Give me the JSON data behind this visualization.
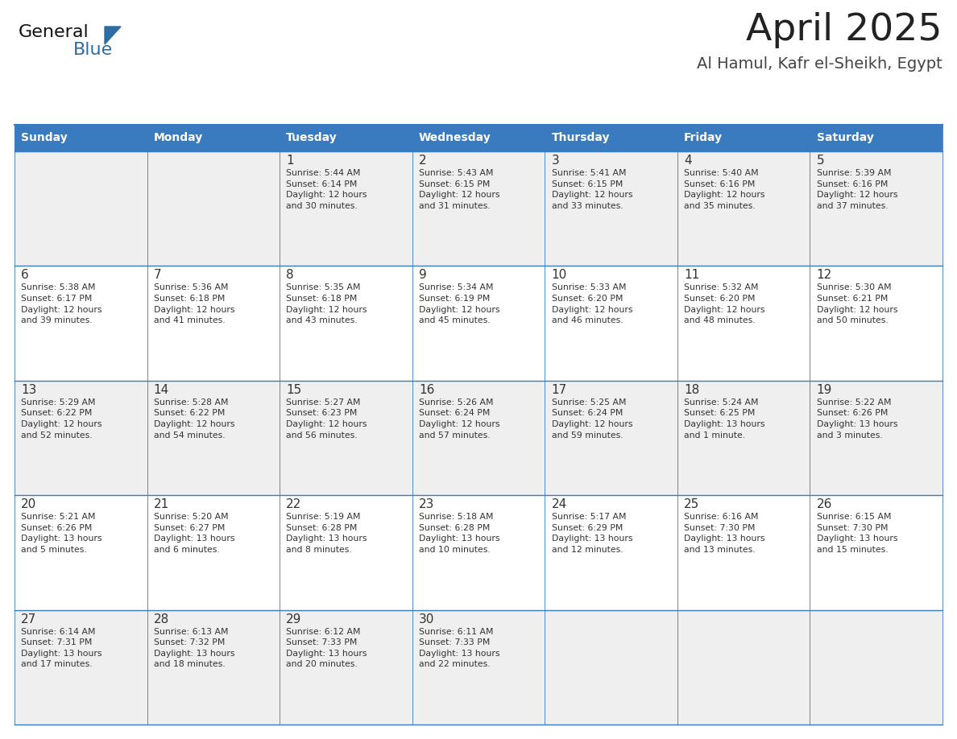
{
  "title": "April 2025",
  "subtitle": "Al Hamul, Kafr el-Sheikh, Egypt",
  "header_bg": "#3a7abf",
  "header_text": "#ffffff",
  "days_of_week": [
    "Sunday",
    "Monday",
    "Tuesday",
    "Wednesday",
    "Thursday",
    "Friday",
    "Saturday"
  ],
  "row_bg_even": "#efefef",
  "row_bg_odd": "#ffffff",
  "cell_text_color": "#333333",
  "grid_line_color": "#3a7abf",
  "calendar": [
    [
      {
        "day": "",
        "info": ""
      },
      {
        "day": "",
        "info": ""
      },
      {
        "day": "1",
        "info": "Sunrise: 5:44 AM\nSunset: 6:14 PM\nDaylight: 12 hours\nand 30 minutes."
      },
      {
        "day": "2",
        "info": "Sunrise: 5:43 AM\nSunset: 6:15 PM\nDaylight: 12 hours\nand 31 minutes."
      },
      {
        "day": "3",
        "info": "Sunrise: 5:41 AM\nSunset: 6:15 PM\nDaylight: 12 hours\nand 33 minutes."
      },
      {
        "day": "4",
        "info": "Sunrise: 5:40 AM\nSunset: 6:16 PM\nDaylight: 12 hours\nand 35 minutes."
      },
      {
        "day": "5",
        "info": "Sunrise: 5:39 AM\nSunset: 6:16 PM\nDaylight: 12 hours\nand 37 minutes."
      }
    ],
    [
      {
        "day": "6",
        "info": "Sunrise: 5:38 AM\nSunset: 6:17 PM\nDaylight: 12 hours\nand 39 minutes."
      },
      {
        "day": "7",
        "info": "Sunrise: 5:36 AM\nSunset: 6:18 PM\nDaylight: 12 hours\nand 41 minutes."
      },
      {
        "day": "8",
        "info": "Sunrise: 5:35 AM\nSunset: 6:18 PM\nDaylight: 12 hours\nand 43 minutes."
      },
      {
        "day": "9",
        "info": "Sunrise: 5:34 AM\nSunset: 6:19 PM\nDaylight: 12 hours\nand 45 minutes."
      },
      {
        "day": "10",
        "info": "Sunrise: 5:33 AM\nSunset: 6:20 PM\nDaylight: 12 hours\nand 46 minutes."
      },
      {
        "day": "11",
        "info": "Sunrise: 5:32 AM\nSunset: 6:20 PM\nDaylight: 12 hours\nand 48 minutes."
      },
      {
        "day": "12",
        "info": "Sunrise: 5:30 AM\nSunset: 6:21 PM\nDaylight: 12 hours\nand 50 minutes."
      }
    ],
    [
      {
        "day": "13",
        "info": "Sunrise: 5:29 AM\nSunset: 6:22 PM\nDaylight: 12 hours\nand 52 minutes."
      },
      {
        "day": "14",
        "info": "Sunrise: 5:28 AM\nSunset: 6:22 PM\nDaylight: 12 hours\nand 54 minutes."
      },
      {
        "day": "15",
        "info": "Sunrise: 5:27 AM\nSunset: 6:23 PM\nDaylight: 12 hours\nand 56 minutes."
      },
      {
        "day": "16",
        "info": "Sunrise: 5:26 AM\nSunset: 6:24 PM\nDaylight: 12 hours\nand 57 minutes."
      },
      {
        "day": "17",
        "info": "Sunrise: 5:25 AM\nSunset: 6:24 PM\nDaylight: 12 hours\nand 59 minutes."
      },
      {
        "day": "18",
        "info": "Sunrise: 5:24 AM\nSunset: 6:25 PM\nDaylight: 13 hours\nand 1 minute."
      },
      {
        "day": "19",
        "info": "Sunrise: 5:22 AM\nSunset: 6:26 PM\nDaylight: 13 hours\nand 3 minutes."
      }
    ],
    [
      {
        "day": "20",
        "info": "Sunrise: 5:21 AM\nSunset: 6:26 PM\nDaylight: 13 hours\nand 5 minutes."
      },
      {
        "day": "21",
        "info": "Sunrise: 5:20 AM\nSunset: 6:27 PM\nDaylight: 13 hours\nand 6 minutes."
      },
      {
        "day": "22",
        "info": "Sunrise: 5:19 AM\nSunset: 6:28 PM\nDaylight: 13 hours\nand 8 minutes."
      },
      {
        "day": "23",
        "info": "Sunrise: 5:18 AM\nSunset: 6:28 PM\nDaylight: 13 hours\nand 10 minutes."
      },
      {
        "day": "24",
        "info": "Sunrise: 5:17 AM\nSunset: 6:29 PM\nDaylight: 13 hours\nand 12 minutes."
      },
      {
        "day": "25",
        "info": "Sunrise: 6:16 AM\nSunset: 7:30 PM\nDaylight: 13 hours\nand 13 minutes."
      },
      {
        "day": "26",
        "info": "Sunrise: 6:15 AM\nSunset: 7:30 PM\nDaylight: 13 hours\nand 15 minutes."
      }
    ],
    [
      {
        "day": "27",
        "info": "Sunrise: 6:14 AM\nSunset: 7:31 PM\nDaylight: 13 hours\nand 17 minutes."
      },
      {
        "day": "28",
        "info": "Sunrise: 6:13 AM\nSunset: 7:32 PM\nDaylight: 13 hours\nand 18 minutes."
      },
      {
        "day": "29",
        "info": "Sunrise: 6:12 AM\nSunset: 7:33 PM\nDaylight: 13 hours\nand 20 minutes."
      },
      {
        "day": "30",
        "info": "Sunrise: 6:11 AM\nSunset: 7:33 PM\nDaylight: 13 hours\nand 22 minutes."
      },
      {
        "day": "",
        "info": ""
      },
      {
        "day": "",
        "info": ""
      },
      {
        "day": "",
        "info": ""
      }
    ]
  ],
  "logo_text_general": "General",
  "logo_text_blue": "Blue",
  "logo_triangle_color": "#2e6da4",
  "fig_width": 11.88,
  "fig_height": 9.18,
  "dpi": 100
}
